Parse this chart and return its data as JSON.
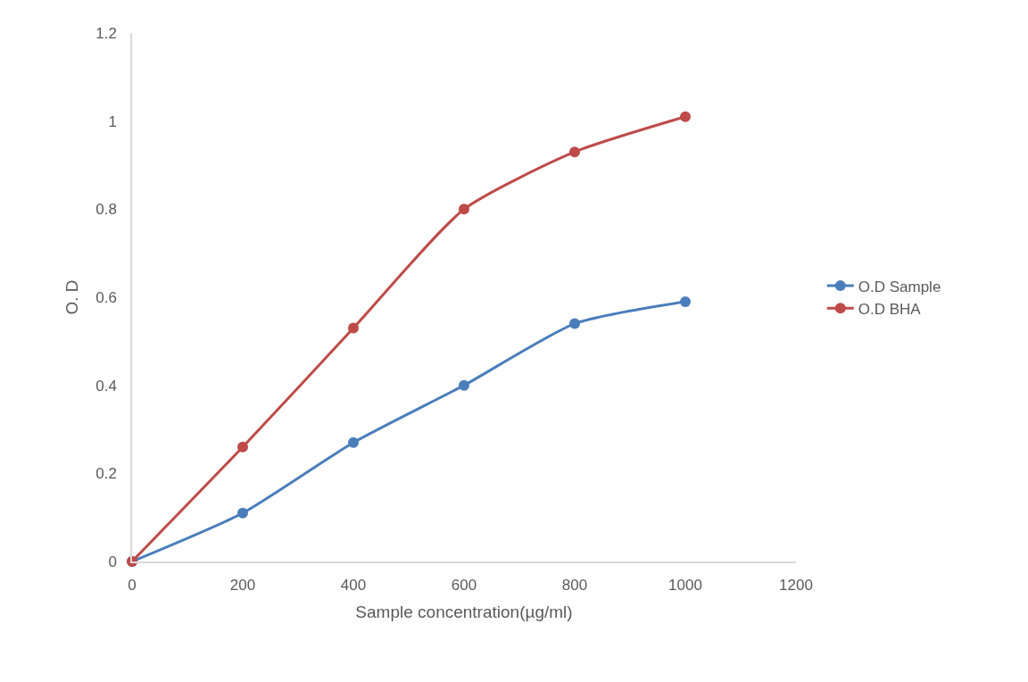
{
  "chart_data": {
    "type": "line",
    "xlabel": "Sample concentration(µg/ml)",
    "ylabel": "O. D",
    "x": [
      0,
      200,
      400,
      600,
      800,
      1000
    ],
    "series": [
      {
        "name": "O.D Sample",
        "color": "#4a7ebb",
        "values": [
          0,
          0.11,
          0.27,
          0.4,
          0.54,
          0.59
        ]
      },
      {
        "name": "O.D BHA",
        "color": "#be4b48",
        "values": [
          0,
          0.26,
          0.53,
          0.8,
          0.93,
          1.01
        ]
      }
    ],
    "xlim": [
      0,
      1200
    ],
    "xticks": [
      0,
      200,
      400,
      600,
      800,
      1000,
      1200
    ],
    "ylim": [
      0,
      1.2
    ],
    "yticks": [
      0,
      0.2,
      0.4,
      0.6,
      0.8,
      1,
      1.2
    ],
    "legend": "right",
    "marker": "circle",
    "line_style": "solid"
  }
}
